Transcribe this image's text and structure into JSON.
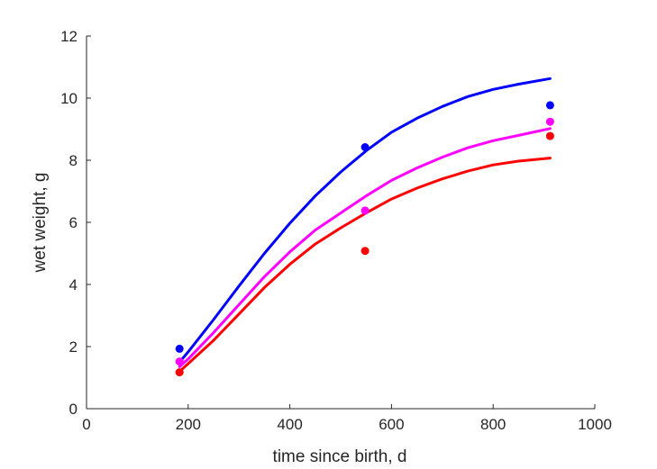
{
  "chart_data": {
    "type": "line",
    "xlabel": "time since birth, d",
    "ylabel": "wet weight, g",
    "xlim": [
      0,
      1000
    ],
    "ylim": [
      0,
      12
    ],
    "xticks": [
      0,
      200,
      400,
      600,
      800,
      1000
    ],
    "yticks": [
      0,
      2,
      4,
      6,
      8,
      10,
      12
    ],
    "grid": false,
    "legend": "none",
    "series": [
      {
        "color": "#0000ff",
        "curve_x": [
          183,
          200,
          250,
          300,
          350,
          400,
          450,
          500,
          550,
          600,
          650,
          700,
          750,
          800,
          850,
          912
        ],
        "curve_y": [
          1.5,
          1.83,
          2.87,
          3.95,
          5.0,
          5.97,
          6.85,
          7.62,
          8.3,
          8.9,
          9.35,
          9.73,
          10.05,
          10.28,
          10.45,
          10.63
        ],
        "points_x": [
          183,
          548,
          912
        ],
        "points_y": [
          1.93,
          8.42,
          9.77
        ]
      },
      {
        "color": "#ff00ff",
        "curve_x": [
          183,
          200,
          250,
          300,
          350,
          400,
          450,
          500,
          550,
          600,
          650,
          700,
          750,
          800,
          850,
          912
        ],
        "curve_y": [
          1.35,
          1.6,
          2.45,
          3.35,
          4.25,
          5.05,
          5.75,
          6.3,
          6.85,
          7.35,
          7.75,
          8.1,
          8.4,
          8.63,
          8.8,
          9.02
        ],
        "points_x": [
          183,
          548,
          912
        ],
        "points_y": [
          1.52,
          6.38,
          9.24
        ]
      },
      {
        "color": "#ff0000",
        "curve_x": [
          183,
          200,
          250,
          300,
          350,
          400,
          450,
          500,
          550,
          600,
          650,
          700,
          750,
          800,
          850,
          912
        ],
        "curve_y": [
          1.2,
          1.45,
          2.2,
          3.05,
          3.9,
          4.65,
          5.3,
          5.82,
          6.3,
          6.75,
          7.1,
          7.4,
          7.65,
          7.85,
          7.97,
          8.07
        ],
        "points_x": [
          183,
          548,
          912
        ],
        "points_y": [
          1.17,
          5.08,
          8.78
        ]
      }
    ]
  }
}
